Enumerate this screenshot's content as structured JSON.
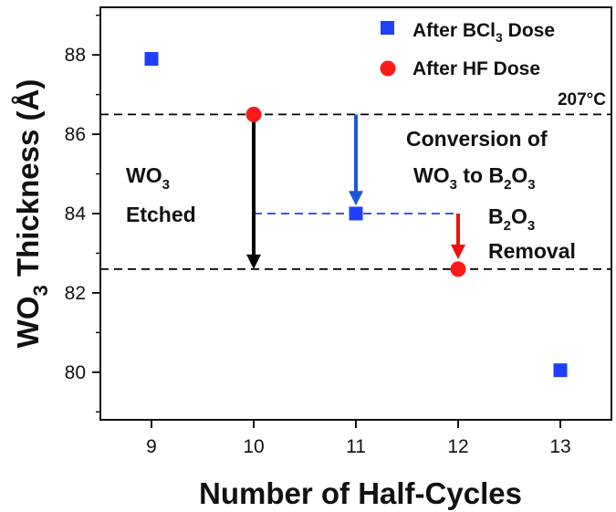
{
  "chart_data": {
    "type": "scatter",
    "xlabel": "Number of Half-Cycles",
    "ylabel": {
      "main": "WO",
      "sub": "3",
      "rest": " Thickness (Å)"
    },
    "xlim": [
      8.5,
      13.5
    ],
    "ylim": [
      78.8,
      89.2
    ],
    "xticks": [
      9,
      10,
      11,
      12,
      13
    ],
    "yticks": [
      80,
      82,
      84,
      86,
      88
    ],
    "series": [
      {
        "name": {
          "main": "After BCl",
          "sub": "3",
          "rest": " Dose"
        },
        "marker": "square",
        "color": "#1f3fff",
        "points": [
          {
            "x": 9,
            "y": 87.9
          },
          {
            "x": 11,
            "y": 84.0
          },
          {
            "x": 13,
            "y": 80.05
          }
        ]
      },
      {
        "name": {
          "main": "After HF Dose",
          "sub": "",
          "rest": ""
        },
        "marker": "circle",
        "color": "#ff1a1a",
        "points": [
          {
            "x": 10,
            "y": 86.5
          },
          {
            "x": 12,
            "y": 82.6
          }
        ]
      }
    ],
    "reference_lines": [
      {
        "y": 86.5,
        "x_from": 8.5,
        "x_to": 13.5,
        "color": "#000000"
      },
      {
        "y": 82.6,
        "x_from": 8.5,
        "x_to": 13.5,
        "color": "#000000"
      },
      {
        "y": 84.0,
        "x_from": 10.0,
        "x_to": 12.0,
        "color": "#1f3fff"
      }
    ],
    "arrows": [
      {
        "x": 10,
        "y_from": 86.5,
        "y_to": 82.6,
        "color": "#000000"
      },
      {
        "x": 11,
        "y_from": 86.5,
        "y_to": 84.2,
        "color": "#1f58d6"
      },
      {
        "x": 12,
        "y_from": 84.0,
        "y_to": 82.85,
        "color": "#ee1111"
      }
    ],
    "annotations": {
      "temperature": "207°C",
      "etched": {
        "line1_main": "WO",
        "line1_sub": "3",
        "line2": "Etched"
      },
      "conversion": {
        "line1": "Conversion of",
        "l2_a": "WO",
        "l2_a_sub": "3",
        "l2_b": " to B",
        "l2_b_sub": "2",
        "l2_c": "O",
        "l2_c_sub": "3"
      },
      "removal": {
        "l1_a": "B",
        "l1_a_sub": "2",
        "l1_b": "O",
        "l1_b_sub": "3",
        "line2": "Removal"
      }
    }
  }
}
